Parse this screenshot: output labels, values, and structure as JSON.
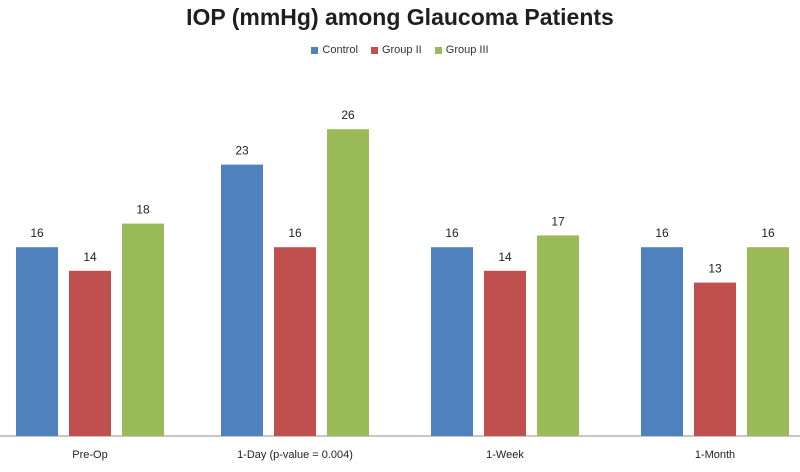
{
  "chart_data": {
    "type": "bar",
    "title": "IOP (mmHg) among Glaucoma Patients",
    "categories": [
      "Pre-Op",
      "1-Day (p-value = 0.004)",
      "1-Week",
      "1-Month"
    ],
    "series": [
      {
        "name": "Control",
        "color": "#4f81bd",
        "values": [
          16,
          23,
          16,
          16
        ]
      },
      {
        "name": "Group II",
        "color": "#c0504d",
        "values": [
          14,
          16,
          14,
          13
        ]
      },
      {
        "name": "Group III",
        "color": "#9bbb59",
        "values": [
          18,
          26,
          17,
          16
        ]
      }
    ],
    "ylim": [
      0,
      30
    ],
    "grid": false,
    "legend": "top",
    "data_labels": true
  }
}
